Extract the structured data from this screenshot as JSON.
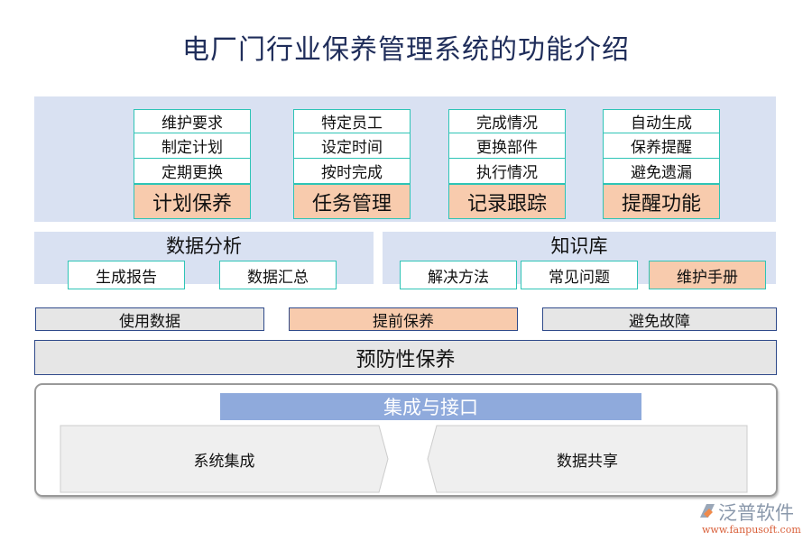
{
  "title": "电厂门行业保养管理系统的功能介绍",
  "groups": [
    {
      "items": [
        "维护要求",
        "制定计划",
        "定期更换"
      ],
      "head": "计划保养"
    },
    {
      "items": [
        "特定员工",
        "设定时间",
        "按时完成"
      ],
      "head": "任务管理"
    },
    {
      "items": [
        "完成情况",
        "更换部件",
        "执行情况"
      ],
      "head": "记录跟踪"
    },
    {
      "items": [
        "自动生成",
        "保养提醒",
        "避免遗漏"
      ],
      "head": "提醒功能"
    }
  ],
  "analysis": {
    "title": "数据分析",
    "items": [
      "生成报告",
      "数据汇总"
    ]
  },
  "knowledge": {
    "title": "知识库",
    "items": [
      "解决方法",
      "常见问题",
      "维护手册"
    ]
  },
  "middle": [
    "使用数据",
    "提前保养",
    "避免故障"
  ],
  "base": "预防性保养",
  "integration": {
    "title": "集成与接口",
    "left": "系统集成",
    "right": "数据共享"
  },
  "logo": {
    "name": "泛普软件",
    "url": "www.fanpusoft.com"
  },
  "colors": {
    "band": "#d9e1f2",
    "peach": "#f8cbad",
    "teal": "#2ec4b6",
    "navy": "#2f4a8a",
    "bar": "#8faadc"
  }
}
